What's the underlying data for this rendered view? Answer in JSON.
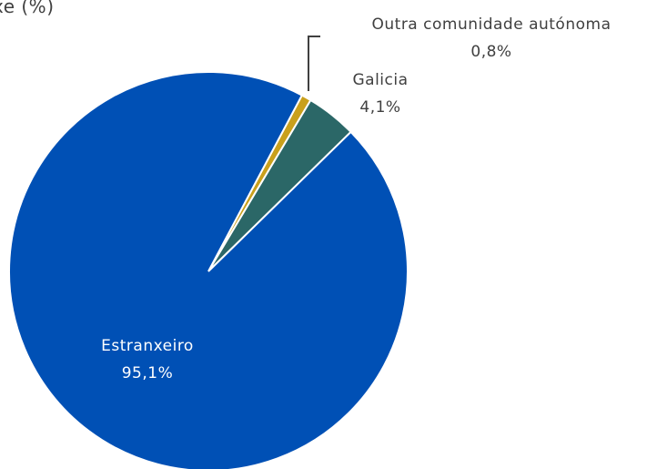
{
  "chart_data": {
    "type": "pie",
    "title": "xe (%)",
    "categories": [
      "Outra comunidade autónoma",
      "Galicia",
      "Estranxeiro"
    ],
    "values": [
      0.8,
      4.1,
      95.1
    ],
    "value_labels": [
      "0,8%",
      "4,1%",
      "95,1%"
    ],
    "colors": [
      "#c9a01c",
      "#2b6767",
      "#0050b5"
    ]
  }
}
